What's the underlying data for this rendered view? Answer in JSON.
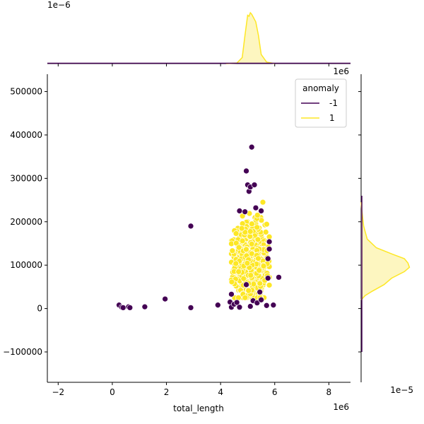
{
  "chart_data": {
    "type": "scatter",
    "xlabel": "total_length",
    "ylabel": "",
    "x_offset_label": "1e6",
    "top_marg_offset_label": "1e−6",
    "right_marg_offset_label": "1e−5",
    "top_marg_top_offset_label": "1e6",
    "xlim": [
      -2.4,
      8.8
    ],
    "ylim": [
      -170000,
      540000
    ],
    "xticks": [
      -2,
      0,
      2,
      4,
      6,
      8
    ],
    "yticks": [
      -100000,
      0,
      100000,
      200000,
      300000,
      400000,
      500000
    ],
    "grid": false,
    "legend": {
      "title": "anomaly",
      "placement": "top-right",
      "entries": [
        {
          "label": "-1",
          "color": "#440154"
        },
        {
          "label": "1",
          "color": "#fde725"
        }
      ]
    },
    "colors": {
      "anomaly": "#440154",
      "normal": "#fde725",
      "normal_fill": "#fdf6c0"
    },
    "series": [
      {
        "name": "-1",
        "points": [
          [
            0.25,
            8000
          ],
          [
            0.35,
            3000
          ],
          [
            0.4,
            2000
          ],
          [
            0.6,
            4000
          ],
          [
            0.65,
            2000
          ],
          [
            1.2,
            4000
          ],
          [
            1.95,
            22000
          ],
          [
            2.9,
            2000
          ],
          [
            2.9,
            190000
          ],
          [
            3.9,
            8000
          ],
          [
            4.35,
            15000
          ],
          [
            4.4,
            3000
          ],
          [
            4.4,
            33000
          ],
          [
            4.5,
            10000
          ],
          [
            4.6,
            14000
          ],
          [
            4.7,
            3000
          ],
          [
            4.9,
            223000
          ],
          [
            4.95,
            317000
          ],
          [
            5.0,
            285000
          ],
          [
            5.05,
            270000
          ],
          [
            5.1,
            280000
          ],
          [
            5.15,
            372000
          ],
          [
            5.25,
            285000
          ],
          [
            5.3,
            232000
          ],
          [
            5.5,
            225000
          ],
          [
            4.7,
            225000
          ],
          [
            5.8,
            154000
          ],
          [
            5.8,
            137000
          ],
          [
            5.75,
            115000
          ],
          [
            5.75,
            70000
          ],
          [
            5.2,
            18000
          ],
          [
            5.1,
            5000
          ],
          [
            5.35,
            13000
          ],
          [
            5.5,
            20000
          ],
          [
            5.7,
            7000
          ],
          [
            5.95,
            8000
          ],
          [
            6.15,
            72000
          ],
          [
            4.95,
            55000
          ],
          [
            5.45,
            38000
          ]
        ]
      },
      {
        "name": "1",
        "center": [
          5.1,
          105000
        ],
        "spread": [
          0.28,
          45000
        ],
        "count": 900,
        "xrange": [
          4.4,
          5.8
        ],
        "yrange": [
          25000,
          245000
        ]
      }
    ],
    "top_marginal": {
      "x": [
        4.2,
        4.6,
        4.8,
        4.9,
        5.0,
        5.05,
        5.1,
        5.15,
        5.2,
        5.3,
        5.4,
        5.5,
        5.7,
        6.0
      ],
      "density": [
        0.0,
        0.01,
        0.12,
        0.55,
        0.95,
        0.93,
        1.0,
        0.97,
        0.92,
        0.82,
        0.55,
        0.18,
        0.03,
        0.0
      ]
    },
    "right_marginal": {
      "y": [
        20000,
        30000,
        40000,
        55000,
        70000,
        85000,
        95000,
        105000,
        115000,
        125000,
        140000,
        160000,
        190000,
        230000,
        245000
      ],
      "density": [
        0.0,
        0.08,
        0.22,
        0.45,
        0.6,
        0.85,
        0.95,
        0.92,
        0.85,
        0.62,
        0.3,
        0.12,
        0.05,
        0.01,
        0.0
      ]
    }
  }
}
